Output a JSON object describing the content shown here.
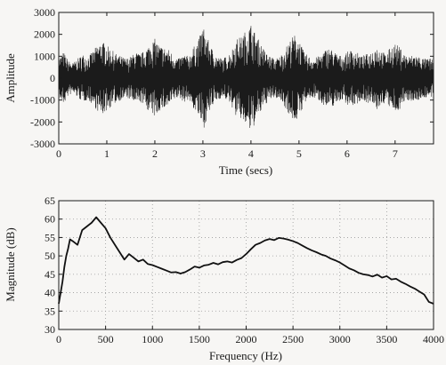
{
  "chart_data": [
    {
      "type": "line",
      "xlabel": "Time (secs)",
      "ylabel": "Amplitude",
      "xlim": [
        0,
        7.8
      ],
      "ylim": [
        -3000,
        3000
      ],
      "x_ticks": [
        0,
        1,
        2,
        3,
        4,
        5,
        6,
        7
      ],
      "y_ticks": [
        -3000,
        -2000,
        -1000,
        0,
        1000,
        2000,
        3000
      ],
      "grid": false,
      "envelope": {
        "description": "dense audio waveform; peak magnitude over time",
        "x": [
          0,
          0.1,
          0.2,
          0.3,
          0.4,
          0.5,
          0.6,
          0.7,
          0.8,
          0.9,
          1.0,
          1.1,
          1.2,
          1.3,
          1.4,
          1.5,
          1.6,
          1.7,
          1.8,
          1.9,
          2.0,
          2.1,
          2.2,
          2.3,
          2.4,
          2.5,
          2.6,
          2.7,
          2.8,
          2.9,
          3.0,
          3.1,
          3.2,
          3.3,
          3.4,
          3.5,
          3.6,
          3.7,
          3.8,
          3.9,
          4.0,
          4.1,
          4.2,
          4.3,
          4.4,
          4.5,
          4.6,
          4.7,
          4.8,
          4.9,
          5.0,
          5.1,
          5.2,
          5.3,
          5.4,
          5.5,
          5.6,
          5.7,
          5.8,
          5.9,
          6.0,
          6.1,
          6.2,
          6.3,
          6.4,
          6.5,
          6.6,
          6.7,
          6.8,
          6.9,
          7.0,
          7.1,
          7.2,
          7.3,
          7.4,
          7.5,
          7.6,
          7.7,
          7.8
        ],
        "y": [
          900,
          1200,
          800,
          700,
          900,
          1100,
          1000,
          1200,
          1500,
          1700,
          1500,
          1300,
          1100,
          1000,
          900,
          1000,
          1200,
          1100,
          1300,
          1600,
          1800,
          1500,
          1400,
          1300,
          1000,
          900,
          1100,
          1000,
          1400,
          1700,
          2400,
          1800,
          1300,
          1000,
          900,
          1000,
          1300,
          1800,
          1900,
          2200,
          2500,
          2000,
          1600,
          1200,
          1000,
          900,
          1000,
          1300,
          1700,
          2000,
          1800,
          1200,
          1000,
          900,
          1000,
          1200,
          1400,
          1300,
          1100,
          1000,
          1200,
          1300,
          1200,
          1000,
          1100,
          1200,
          1500,
          1300,
          1100,
          1400,
          1600,
          1400,
          1100,
          1000,
          1100,
          1000,
          900,
          900,
          900
        ]
      }
    },
    {
      "type": "line",
      "xlabel": "Frequency (Hz)",
      "ylabel": "Magnitude (dB)",
      "xlim": [
        0,
        4000
      ],
      "ylim": [
        30,
        65
      ],
      "x_ticks": [
        0,
        500,
        1000,
        1500,
        2000,
        2500,
        3000,
        3500,
        4000
      ],
      "y_ticks": [
        30,
        35,
        40,
        45,
        50,
        55,
        60,
        65
      ],
      "grid": true,
      "series": [
        {
          "x": [
            0,
            20,
            40,
            60,
            80,
            100,
            120,
            150,
            200,
            250,
            300,
            350,
            400,
            450,
            500,
            550,
            600,
            650,
            700,
            750,
            800,
            850,
            900,
            950,
            1000,
            1050,
            1100,
            1150,
            1200,
            1250,
            1300,
            1350,
            1400,
            1450,
            1500,
            1550,
            1600,
            1650,
            1700,
            1750,
            1800,
            1850,
            1900,
            1950,
            2000,
            2050,
            2100,
            2150,
            2200,
            2250,
            2300,
            2350,
            2400,
            2450,
            2500,
            2550,
            2600,
            2650,
            2700,
            2750,
            2800,
            2850,
            2900,
            2950,
            3000,
            3050,
            3100,
            3150,
            3200,
            3250,
            3300,
            3350,
            3400,
            3450,
            3500,
            3550,
            3600,
            3650,
            3700,
            3750,
            3800,
            3850,
            3900,
            3950,
            4000
          ],
          "y": [
            37,
            40,
            43,
            47,
            50,
            52,
            54.5,
            54,
            53,
            57,
            58,
            59,
            60.5,
            59,
            57.5,
            55,
            53,
            51,
            49,
            50.5,
            49.5,
            48.5,
            49,
            47.8,
            47.5,
            47,
            46.5,
            46,
            45.5,
            45.6,
            45.2,
            45.6,
            46.3,
            47.1,
            46.8,
            47.4,
            47.6,
            48.1,
            47.7,
            48.3,
            48.5,
            48.2,
            48.9,
            49.4,
            50.5,
            51.8,
            53,
            53.5,
            54.2,
            54.6,
            54.3,
            54.9,
            54.7,
            54.4,
            54,
            53.5,
            52.8,
            52.1,
            51.5,
            51,
            50.4,
            50,
            49.3,
            48.8,
            48.2,
            47.4,
            46.6,
            46.1,
            45.4,
            45,
            44.8,
            44.4,
            44.9,
            44.1,
            44.5,
            43.6,
            43.8,
            43,
            42.4,
            41.7,
            41.1,
            40.3,
            39.5,
            37.5,
            37
          ]
        }
      ]
    }
  ]
}
